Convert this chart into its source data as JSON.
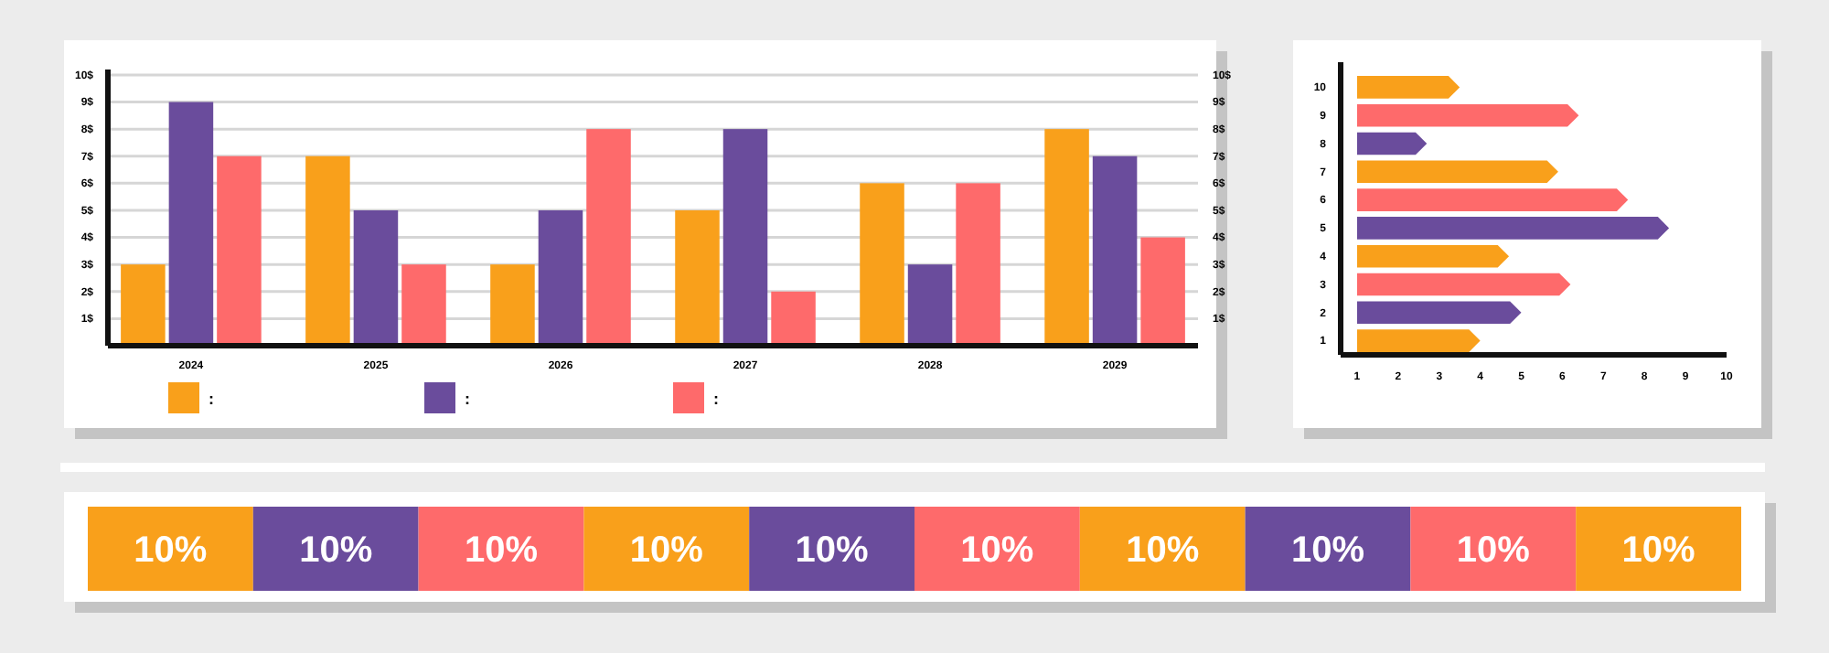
{
  "chart_data": [
    {
      "type": "bar",
      "categories": [
        "2024",
        "2025",
        "2026",
        "2027",
        "2028",
        "2029"
      ],
      "series": [
        {
          "color": "#f9a01b",
          "values": [
            3,
            7,
            3,
            5,
            6,
            8
          ]
        },
        {
          "color": "#6a4c9c",
          "values": [
            9,
            5,
            5,
            8,
            3,
            7
          ]
        },
        {
          "color": "#fe6a6b",
          "values": [
            7,
            3,
            8,
            2,
            6,
            4
          ]
        }
      ],
      "ylim": [
        0,
        10.2
      ],
      "yticks": [
        {
          "value": 1,
          "label": "1$"
        },
        {
          "value": 2,
          "label": "2$"
        },
        {
          "value": 3,
          "label": "3$"
        },
        {
          "value": 4,
          "label": "4$"
        },
        {
          "value": 5,
          "label": "5$"
        },
        {
          "value": 6,
          "label": "6$"
        },
        {
          "value": 7,
          "label": "7$"
        },
        {
          "value": 8,
          "label": "8$"
        },
        {
          "value": 9,
          "label": "9$"
        },
        {
          "value": 10,
          "label": "10$"
        }
      ],
      "y2lim": [
        0,
        10.2
      ],
      "y2ticks": [
        {
          "value": 1,
          "label": "1$"
        },
        {
          "value": 2,
          "label": "2$"
        },
        {
          "value": 3,
          "label": "3$"
        },
        {
          "value": 4,
          "label": "4$"
        },
        {
          "value": 5,
          "label": "5$"
        },
        {
          "value": 6,
          "label": "6$"
        },
        {
          "value": 7,
          "label": "7$"
        },
        {
          "value": 8,
          "label": "8$"
        },
        {
          "value": 9,
          "label": "9$"
        },
        {
          "value": 10,
          "label": "10$"
        }
      ],
      "grid": "y",
      "annotations": [
        ":",
        ":",
        ":"
      ]
    },
    {
      "type": "bar",
      "orientation": "horizontal",
      "categories": [
        "10",
        "9",
        "8",
        "7",
        "6",
        "5",
        "4",
        "3",
        "2",
        "1"
      ],
      "values": [
        2.5,
        5.4,
        1.7,
        4.9,
        6.6,
        7.6,
        3.7,
        5.2,
        4.0,
        3.0
      ],
      "base": [
        1,
        1,
        1,
        1,
        1,
        1,
        1,
        1,
        1,
        1
      ],
      "colors": [
        "#f9a01b",
        "#fe6a6b",
        "#6a4c9c",
        "#f9a01b",
        "#fe6a6b",
        "#6a4c9c",
        "#f9a01b",
        "#fe6a6b",
        "#6a4c9c",
        "#f9a01b"
      ],
      "xlim": [
        0.6,
        10
      ],
      "xticks": [
        1,
        2,
        3,
        4,
        5,
        6,
        7,
        8,
        9,
        10
      ]
    },
    {
      "type": "bar",
      "orientation": "horizontal",
      "stacked": true,
      "tick_labels": false,
      "xlim": [
        0,
        100
      ],
      "categories": [
        null
      ],
      "series": [
        {
          "color": "#f9a01b",
          "values": [
            10
          ],
          "value_labels": [
            "10%"
          ]
        },
        {
          "color": "#6a4c9c",
          "values": [
            10
          ],
          "value_labels": [
            "10%"
          ]
        },
        {
          "color": "#fe6a6b",
          "values": [
            10
          ],
          "value_labels": [
            "10%"
          ]
        },
        {
          "color": "#f9a01b",
          "values": [
            10
          ],
          "value_labels": [
            "10%"
          ]
        },
        {
          "color": "#6a4c9c",
          "values": [
            10
          ],
          "value_labels": [
            "10%"
          ]
        },
        {
          "color": "#fe6a6b",
          "values": [
            10
          ],
          "value_labels": [
            "10%"
          ]
        },
        {
          "color": "#f9a01b",
          "values": [
            10
          ],
          "value_labels": [
            "10%"
          ]
        },
        {
          "color": "#6a4c9c",
          "values": [
            10
          ],
          "value_labels": [
            "10%"
          ]
        },
        {
          "color": "#fe6a6b",
          "values": [
            10
          ],
          "value_labels": [
            "10%"
          ]
        },
        {
          "color": "#f9a01b",
          "values": [
            10
          ],
          "value_labels": [
            "10%"
          ]
        }
      ]
    }
  ]
}
